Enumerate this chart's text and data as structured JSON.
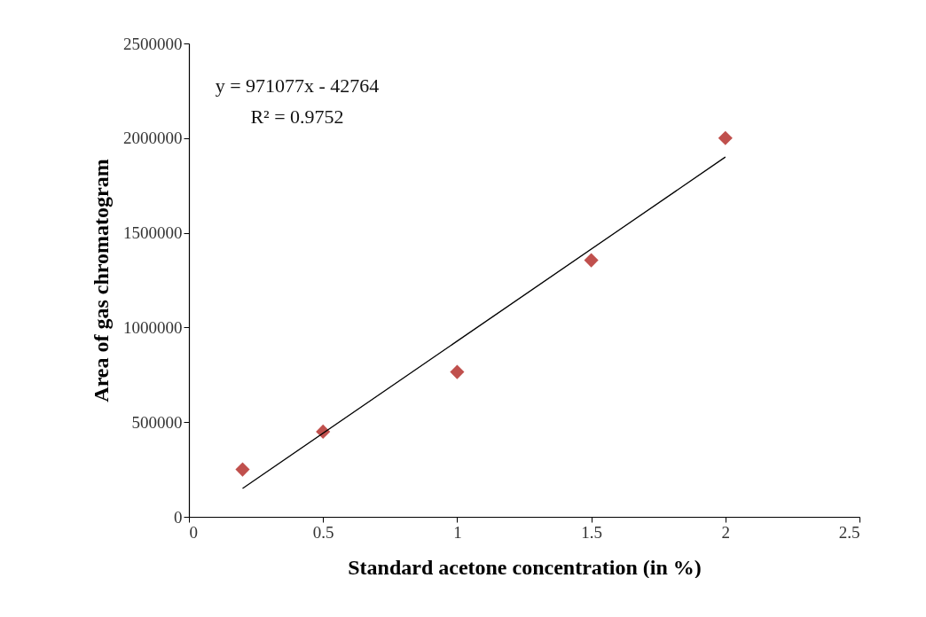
{
  "chart_data": {
    "type": "scatter",
    "xlabel": "Standard acetone concentration (in %)",
    "ylabel": "Area of gas chromatogram",
    "x": [
      0.2,
      0.5,
      1,
      1.5,
      2
    ],
    "series": [
      {
        "color": "#c0504d",
        "marker": "diamond",
        "values": [
          250000,
          450000,
          765000,
          1355000,
          2000000
        ]
      },
      {
        "type": "line",
        "color": "#000000",
        "x": [
          0.2,
          2
        ],
        "values": [
          150000,
          1900000
        ]
      }
    ],
    "xlim": [
      0,
      2.5
    ],
    "xticks": [
      0,
      0.5,
      1,
      1.5,
      2,
      2.5
    ],
    "ylim": [
      0,
      2500000
    ],
    "yticks": [
      0,
      500000,
      1000000,
      1500000,
      2000000,
      2500000
    ],
    "grid": false,
    "annotations": [
      "y = 971077x - 42764",
      "R² = 0.9752"
    ]
  }
}
